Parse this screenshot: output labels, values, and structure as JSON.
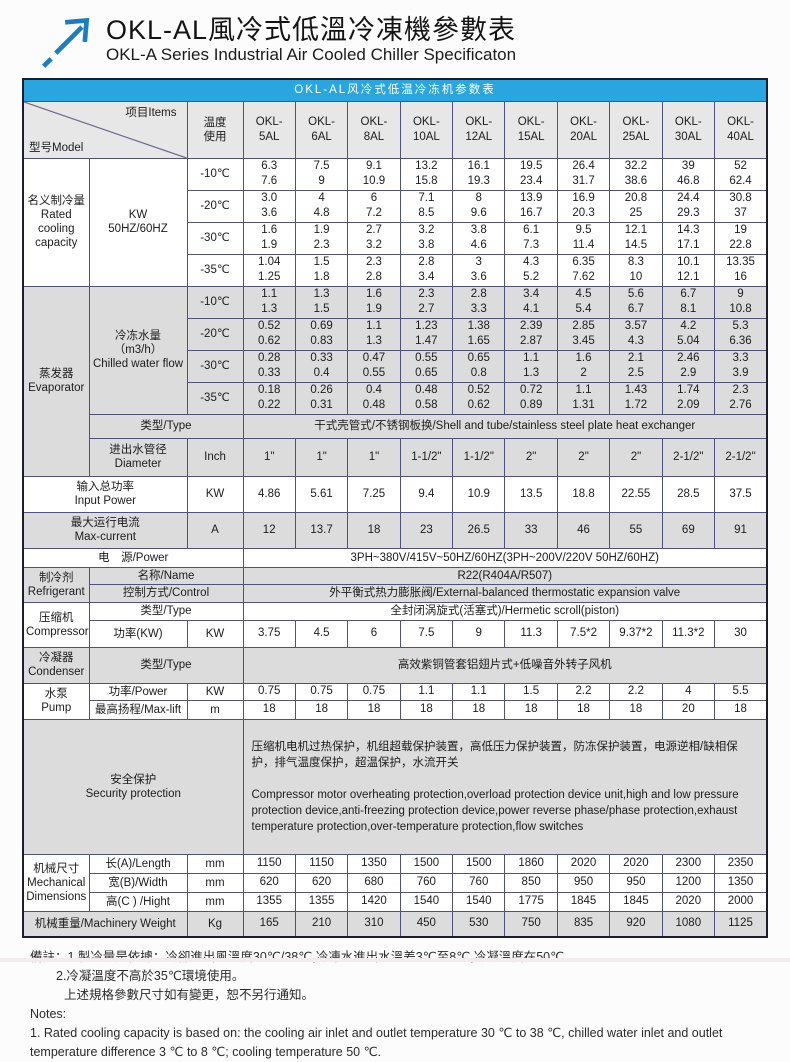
{
  "page": {
    "title_zh": "OKL-AL風冷式低溫冷凍機參數表",
    "title_en": "OKL-A Series Industrial Air Cooled Chiller Specificaton"
  },
  "colors": {
    "caption_blue": "#29a6df",
    "row_gray": "#dcdcdc",
    "border": "#51517f",
    "logo_blue": "#1b7ec2"
  },
  "table": {
    "caption": "OKL-AL风冷式低温冷冻机参数表",
    "corner": {
      "left": "型号Model",
      "right": "项目Items"
    },
    "temp_header": "温度\n使用",
    "models": [
      "OKL-|5AL",
      "OKL-|6AL",
      "OKL-|8AL",
      "OKL-|10AL",
      "OKL-|12AL",
      "OKL-|15AL",
      "OKL-|20AL",
      "OKL-|25AL",
      "OKL-|30AL",
      "OKL-|40AL"
    ],
    "sections": {
      "cooling": {
        "label": "名义制冷量\nRated\ncooling\ncapacity",
        "unit": "KW\n50HZ/60HZ",
        "rows": [
          {
            "temp": "-10℃",
            "values": [
              "6.3|7.6",
              "7.5|9",
              "9.1|10.9",
              "13.2|15.8",
              "16.1|19.3",
              "19.5|23.4",
              "26.4|31.7",
              "32.2|38.6",
              "39|46.8",
              "52|62.4"
            ]
          },
          {
            "temp": "-20℃",
            "values": [
              "3.0|3.6",
              "4|4.8",
              "6|7.2",
              "7.1|8.5",
              "8|9.6",
              "13.9|16.7",
              "16.9|20.3",
              "20.8|25",
              "24.4|29.3",
              "30.8|37"
            ]
          },
          {
            "temp": "-30℃",
            "values": [
              "1.6|1.9",
              "1.9|2.3",
              "2.7|3.2",
              "3.2|3.8",
              "3.8|4.6",
              "6.1|7.3",
              "9.5|11.4",
              "12.1|14.5",
              "14.3|17.1",
              "19|22.8"
            ]
          },
          {
            "temp": "-35℃",
            "values": [
              "1.04|1.25",
              "1.5|1.8",
              "2.3|2.8",
              "2.8|3.4",
              "3|3.6",
              "4.3|5.2",
              "6.35|7.62",
              "8.3|10",
              "10.1|12.1",
              "13.35|16"
            ]
          }
        ]
      },
      "evaporator": {
        "label": "蒸发器\nEvaporator",
        "flow_label": "冷冻水量（m3/h）\nChilled water flow",
        "rows": [
          {
            "temp": "-10℃",
            "values": [
              "1.1|1.3",
              "1.3|1.5",
              "1.6|1.9",
              "2.3|2.7",
              "2.8|3.3",
              "3.4|4.1",
              "4.5|5.4",
              "5.6|6.7",
              "6.7|8.1",
              "9|10.8"
            ]
          },
          {
            "temp": "-20℃",
            "values": [
              "0.52|0.62",
              "0.69|0.83",
              "1.1|1.3",
              "1.23|1.47",
              "1.38|1.65",
              "2.39|2.87",
              "2.85|3.45",
              "3.57|4.3",
              "4.2|5.04",
              "5.3|6.36"
            ]
          },
          {
            "temp": "-30℃",
            "values": [
              "0.28|0.33",
              "0.33|0.4",
              "0.47|0.55",
              "0.55|0.65",
              "0.65|0.8",
              "1.1|1.3",
              "1.6|2",
              "2.1|2.5",
              "2.46|2.9",
              "3.3|3.9"
            ]
          },
          {
            "temp": "-35℃",
            "values": [
              "0.18|0.22",
              "0.26|0.31",
              "0.4|0.48",
              "0.48|0.58",
              "0.52|0.62",
              "0.72|0.89",
              "1.1|1.31",
              "1.43|1.72",
              "1.74|2.09",
              "2.3|2.76"
            ]
          }
        ],
        "type_label": "类型/Type",
        "type_value": "干式壳管式/不锈钢板换/Shell and tube/stainless steel plate heat exchanger",
        "diameter_label": "进出水管径\nDiameter",
        "diameter_unit": "Inch",
        "diameter_values": [
          "1\"",
          "1\"",
          "1\"",
          "1-1/2\"",
          "1-1/2\"",
          "2\"",
          "2\"",
          "2\"",
          "2-1/2\"",
          "2-1/2\""
        ]
      },
      "input_power": {
        "label": "输入总功率\nInput Power",
        "unit": "KW",
        "values": [
          "4.86",
          "5.61",
          "7.25",
          "9.4",
          "10.9",
          "13.5",
          "18.8",
          "22.55",
          "28.5",
          "37.5"
        ]
      },
      "max_current": {
        "label": "最大运行电流\nMax-current",
        "unit": "A",
        "values": [
          "12",
          "13.7",
          "18",
          "23",
          "26.5",
          "33",
          "46",
          "55",
          "69",
          "91"
        ]
      },
      "power": {
        "label": "电　源/Power",
        "value": "3PH~380V/415V~50HZ/60HZ(3PH~200V/220V  50HZ/60HZ)"
      },
      "refrigerant": {
        "label": "制冷剂\nRefrigerant",
        "name_label": "名称/Name",
        "name_value": "R22(R404A/R507)",
        "control_label": "控制方式/Control",
        "control_value": "外平衡式热力膨胀阀/External-balanced thermostatic expansion valve"
      },
      "compressor": {
        "label": "压缩机\nCompressor",
        "type_label": "类型/Type",
        "type_value": "全封闭涡旋式(活塞式)/Hermetic scroll(piston)",
        "power_label": "功率(KW)",
        "power_unit": "KW",
        "power_values": [
          "3.75",
          "4.5",
          "6",
          "7.5",
          "9",
          "11.3",
          "7.5*2",
          "9.37*2",
          "11.3*2",
          "30"
        ]
      },
      "condenser": {
        "label": "冷凝器\nCondenser",
        "type_label": "类型/Type",
        "type_value": "高效紫铜管套铝翅片式+低噪音外转子风机"
      },
      "pump": {
        "label": "水泵\nPump",
        "power_label": "功率/Power",
        "power_unit": "KW",
        "power_values": [
          "0.75",
          "0.75",
          "0.75",
          "1.1",
          "1.1",
          "1.5",
          "2.2",
          "2.2",
          "4",
          "5.5"
        ],
        "lift_label": "最高扬程/Max-lift",
        "lift_unit": "m",
        "lift_values": [
          "18",
          "18",
          "18",
          "18",
          "18",
          "18",
          "18",
          "18",
          "20",
          "18"
        ]
      },
      "security": {
        "label": "安全保护\nSecurity protection",
        "value_zh": "压缩机电机过热保护，机组超载保护装置，高低压力保护装置，防冻保护装置，电源逆相/缺相保护，排气温度保护，超温保护，水流开关",
        "value_en": " Compressor motor overheating protection,overload protection device unit,high and low pressure protection device,anti-freezing protection device,power reverse phase/phase protection,exhaust temperature protection,over-temperature protection,flow switches"
      },
      "dimensions": {
        "label": "机械尺寸\nMechanical\nDimensions",
        "rows": [
          {
            "label": "长(A)/Length",
            "unit": "mm",
            "values": [
              "1150",
              "1150",
              "1350",
              "1500",
              "1500",
              "1860",
              "2020",
              "2020",
              "2300",
              "2350"
            ]
          },
          {
            "label": "宽(B)/Width",
            "unit": "mm",
            "values": [
              "620",
              "620",
              "680",
              "760",
              "760",
              "850",
              "950",
              "950",
              "1200",
              "1350"
            ]
          },
          {
            "label": "高(C ) /Hight",
            "unit": "mm",
            "values": [
              "1355",
              "1355",
              "1420",
              "1540",
              "1540",
              "1775",
              "1845",
              "1845",
              "2020",
              "2000"
            ]
          }
        ]
      },
      "weight": {
        "label": "机械重量/Machinery Weight",
        "unit": "Kg",
        "values": [
          "165",
          "210",
          "310",
          "450",
          "530",
          "750",
          "835",
          "920",
          "1080",
          "1125"
        ]
      }
    }
  },
  "notes": {
    "zh1": "備註：1.製冷量是依據：冷卻進出風溫度30℃/38℃,冷凍水進出水溫差3℃至8℃,冷凝溫度在50℃。",
    "zh2": "2.冷凝溫度不高於35℃環境使用。",
    "zh3": "上述規格參數尺寸如有變更，恕不另行通知。",
    "en_title": "Notes:",
    "en1": "1. Rated cooling capacity is based on: the cooling air inlet and outlet temperature 30 ℃ to 38 ℃, chilled water inlet and outlet temperature difference 3 ℃ to 8 ℃; cooling temperature 50 ℃."
  }
}
